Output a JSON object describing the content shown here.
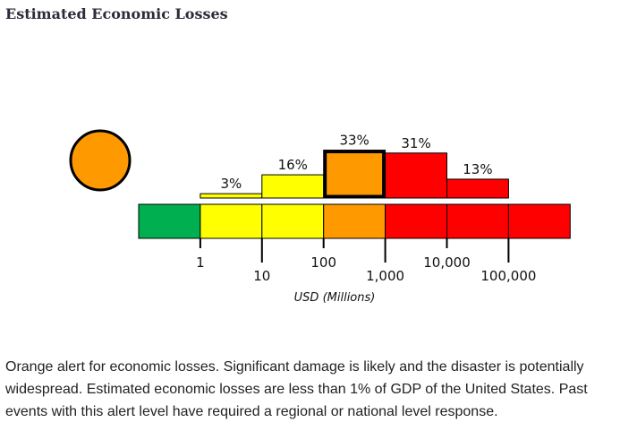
{
  "title": "Estimated Economic Losses",
  "alert_level": "orange",
  "colors": {
    "green": "#00b050",
    "yellow": "#ffff00",
    "orange": "#ff9900",
    "red": "#ff0000"
  },
  "chart_data": {
    "type": "bar",
    "title": "Estimated Economic Losses",
    "xlabel": "USD (Millions)",
    "ylabel": "",
    "categories": [
      "1-10",
      "10-100",
      "100-1,000",
      "1,000-10,000",
      "10,000-100,000"
    ],
    "values": [
      3,
      16,
      33,
      31,
      13
    ],
    "value_labels": [
      "3%",
      "16%",
      "33%",
      "31%",
      "13%"
    ],
    "highlighted_category": "100-1,000",
    "scale_bands": [
      "green",
      "yellow",
      "yellow",
      "orange",
      "red",
      "red",
      "red"
    ],
    "tick_labels": [
      "1",
      "10",
      "100",
      "1,000",
      "10,000",
      "100,000"
    ]
  },
  "description": "Orange alert for economic losses. Significant damage is likely and the disaster is potentially widespread. Estimated economic losses are less than 1% of GDP of the United States. Past events with this alert level have required a regional or national level response."
}
